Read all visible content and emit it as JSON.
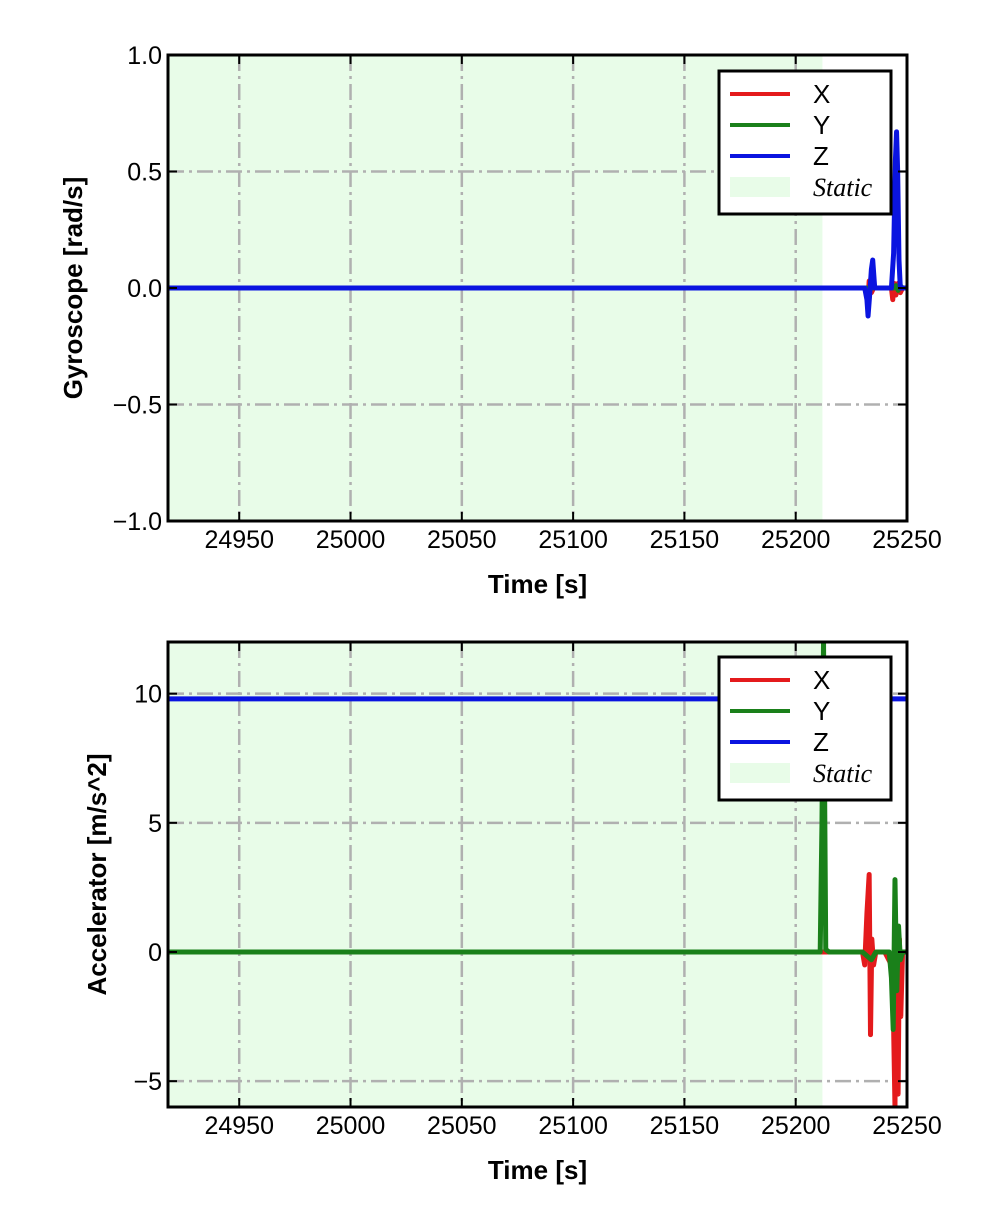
{
  "chart_data": [
    {
      "type": "line",
      "xlabel": "Time [s]",
      "ylabel": "Gyroscope [rad/s]",
      "xlim": [
        24918,
        25250
      ],
      "ylim": [
        -1.0,
        1.0
      ],
      "xticks": [
        24950,
        25000,
        25050,
        25100,
        25150,
        25200,
        25250
      ],
      "xtick_labels": [
        "24950",
        "25000",
        "25050",
        "25100",
        "25150",
        "25200",
        "25250"
      ],
      "yticks": [
        -1.0,
        -0.5,
        0.0,
        0.5,
        1.0
      ],
      "ytick_labels": [
        "−1.0",
        "−0.5",
        "0.0",
        "0.5",
        "1.0"
      ],
      "grid": true,
      "legend_position": "top-right",
      "static_region": {
        "label": "Static",
        "x": [
          24918,
          25212
        ],
        "color": "#e8fce8"
      },
      "series": [
        {
          "name": "X",
          "color": "#e41a1c",
          "x": [
            24918,
            25232,
            25232.5,
            25233,
            25234,
            25235,
            25243,
            25243.6,
            25244.2,
            25245,
            25246,
            25247,
            25248,
            25250
          ],
          "y": [
            0.0,
            0.0,
            -0.05,
            0.03,
            -0.02,
            0.0,
            0.0,
            -0.05,
            0.02,
            -0.03,
            0.02,
            -0.02,
            0.0,
            0.0
          ]
        },
        {
          "name": "Y",
          "color": "#1a801a",
          "x": [
            24918,
            25232,
            25233,
            25234,
            25235,
            25244,
            25245,
            25246,
            25247,
            25248,
            25250
          ],
          "y": [
            0.0,
            0.0,
            -0.02,
            0.02,
            0.0,
            0.0,
            0.01,
            -0.01,
            0.01,
            0.0,
            0.0
          ]
        },
        {
          "name": "Z",
          "color": "#0a14e0",
          "x": [
            24918,
            25231,
            25232,
            25232.5,
            25233.3,
            25234,
            25234.6,
            25235.5,
            25236,
            25243,
            25244,
            25244.8,
            25245.3,
            25245.8,
            25246.4,
            25247,
            25248,
            25250
          ],
          "y": [
            0.0,
            0.0,
            -0.05,
            -0.12,
            -0.02,
            0.08,
            0.12,
            0.0,
            0.0,
            0.0,
            0.15,
            0.55,
            0.67,
            0.5,
            0.12,
            0.0,
            0.0,
            0.0
          ]
        }
      ]
    },
    {
      "type": "line",
      "xlabel": "Time [s]",
      "ylabel": "Accelerator [m/s^2]",
      "xlim": [
        24918,
        25250
      ],
      "ylim": [
        -6.0,
        12.0
      ],
      "xticks": [
        24950,
        25000,
        25050,
        25100,
        25150,
        25200,
        25250
      ],
      "xtick_labels": [
        "24950",
        "25000",
        "25050",
        "25100",
        "25150",
        "25200",
        "25250"
      ],
      "yticks": [
        -5,
        0,
        5,
        10
      ],
      "ytick_labels": [
        "−5",
        "0",
        "5",
        "10"
      ],
      "grid": true,
      "legend_position": "top-right",
      "static_region": {
        "label": "Static",
        "x": [
          24918,
          25212
        ],
        "color": "#e8fce8"
      },
      "series": [
        {
          "name": "X",
          "color": "#e41a1c",
          "x": [
            24918,
            25230,
            25231,
            25232,
            25233,
            25233.6,
            25234.2,
            25235,
            25236,
            25240,
            25243,
            25244,
            25244.6,
            25245.2,
            25246,
            25246.6,
            25247.2,
            25248,
            25250
          ],
          "y": [
            0.0,
            0.0,
            -0.5,
            1.5,
            3.0,
            -3.2,
            0.5,
            -0.5,
            0.0,
            0.0,
            -0.5,
            -3.0,
            -6.0,
            1.0,
            -5.5,
            0.5,
            -2.5,
            0.0,
            0.0
          ]
        },
        {
          "name": "Y",
          "color": "#1a801a",
          "x": [
            24918,
            25211,
            25211.8,
            25212.5,
            25213.5,
            25215,
            25230,
            25234,
            25236,
            25242,
            25243,
            25243.8,
            25244.6,
            25245.4,
            25246.2,
            25247,
            25248,
            25250
          ],
          "y": [
            0.0,
            0.0,
            5.0,
            12.0,
            0.1,
            0.0,
            0.0,
            -0.3,
            0.0,
            0.0,
            -1.0,
            -3.0,
            2.8,
            -1.5,
            1.0,
            -0.3,
            0.0,
            0.0
          ]
        },
        {
          "name": "Z",
          "color": "#0a14e0",
          "x": [
            24918,
            25250
          ],
          "y": [
            9.8,
            9.8
          ]
        }
      ]
    }
  ]
}
